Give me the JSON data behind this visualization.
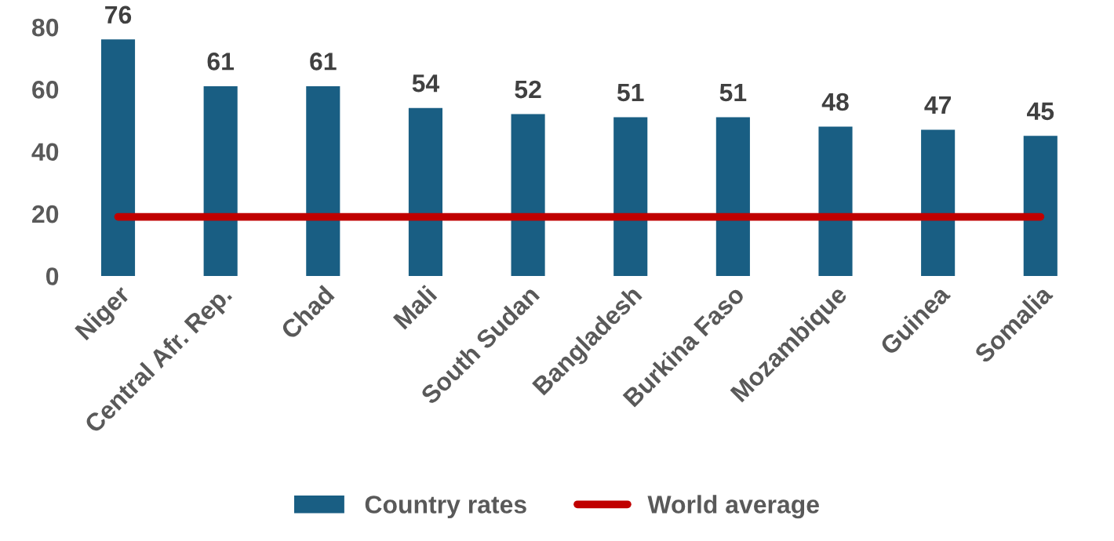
{
  "chart_data": {
    "type": "bar",
    "categories": [
      "Niger",
      "Central Afr. Rep.",
      "Chad",
      "Mali",
      "South Sudan",
      "Bangladesh",
      "Burkina Faso",
      "Mozambique",
      "Guinea",
      "Somalia"
    ],
    "series": [
      {
        "name": "Country rates",
        "color": "#195e83",
        "values": [
          76,
          61,
          61,
          54,
          52,
          51,
          51,
          48,
          47,
          45
        ],
        "value_labels": [
          "76",
          "61",
          "61",
          "54",
          "52",
          "51",
          "51",
          "48",
          "47",
          "45"
        ]
      },
      {
        "name": "World average",
        "type": "line",
        "color": "#c00000",
        "values": [
          19,
          19,
          19,
          19,
          19,
          19,
          19,
          19,
          19,
          19
        ]
      }
    ],
    "ylim": [
      0,
      80
    ],
    "yticks": [
      0,
      20,
      40,
      60,
      80
    ],
    "grid": false,
    "legend": "bottom",
    "marker": "none",
    "line_style": "solid"
  }
}
